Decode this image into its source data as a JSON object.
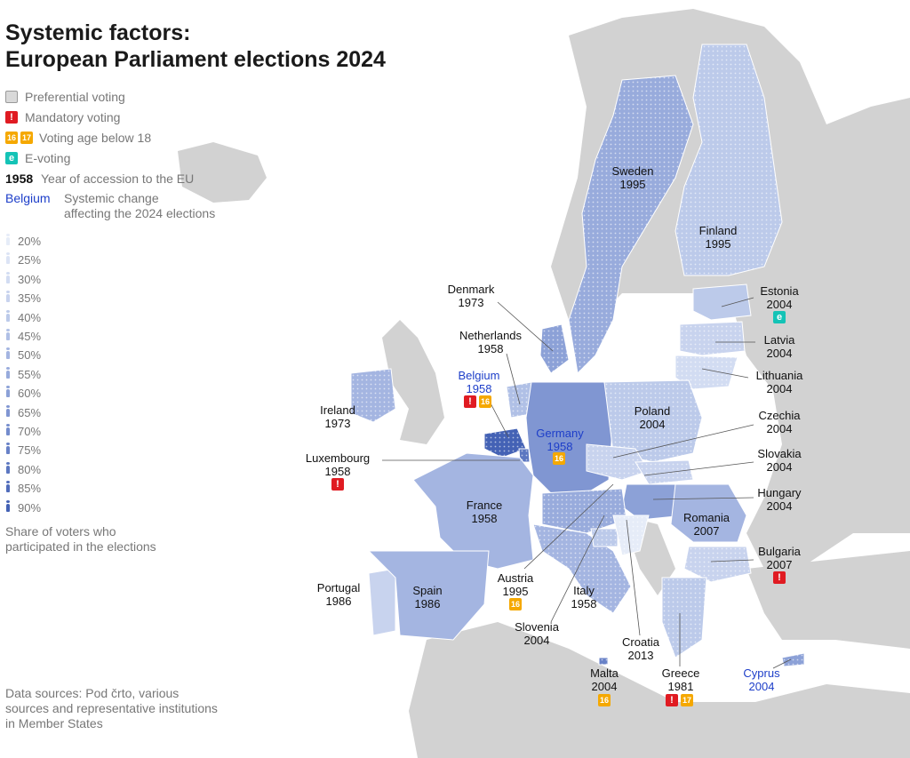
{
  "title": {
    "line1": "Systemic factors:",
    "line2": "European Parliament elections 2024"
  },
  "legend": {
    "preferential": "Preferential voting",
    "mandatory": "Mandatory voting",
    "age": "Voting age below 18",
    "age_badge_a": "16",
    "age_badge_b": "17",
    "evoting": "E-voting",
    "evoting_badge": "e",
    "mandatory_badge": "!",
    "year_example": "1958",
    "year_text": "Year of accession to the EU",
    "change_example": "Belgium",
    "change_text_1": "Systemic change",
    "change_text_2": "affecting the 2024 elections"
  },
  "scale": [
    "20%",
    "25%",
    "30%",
    "35%",
    "40%",
    "45%",
    "50%",
    "55%",
    "60%",
    "65%",
    "70%",
    "75%",
    "80%",
    "85%",
    "90%"
  ],
  "scale_colors": [
    "#e6ecf8",
    "#dce4f5",
    "#d2dcf2",
    "#c8d3ee",
    "#bccaea",
    "#b0c0e6",
    "#a4b5e1",
    "#98abdc",
    "#8ca1d7",
    "#8096d2",
    "#748ccd",
    "#6881c7",
    "#5c77c1",
    "#506cbb",
    "#4462b5"
  ],
  "share_note": "Share of voters who participated in the elections",
  "sources": "Data sources: Pod črto, various sources and representative institutions in Member States",
  "colors": {
    "land": "#d2d2d2",
    "sea": "#ffffff",
    "mandatory": "#e01b22",
    "age": "#f5a800",
    "evoting": "#14c3b6",
    "change": "#1d3ec9"
  },
  "countries": [
    {
      "name": "Sweden",
      "year": "1995",
      "turnout": 53.4,
      "pref": true
    },
    {
      "name": "Finland",
      "year": "1995",
      "turnout": 40.4,
      "pref": true
    },
    {
      "name": "Estonia",
      "year": "2004",
      "turnout": 37.6,
      "pref": false,
      "ev": true
    },
    {
      "name": "Latvia",
      "year": "2004",
      "turnout": 33.8,
      "pref": true
    },
    {
      "name": "Lithuania",
      "year": "2004",
      "turnout": 28.9,
      "pref": true
    },
    {
      "name": "Denmark",
      "year": "1973",
      "turnout": 58.3,
      "pref": true
    },
    {
      "name": "Netherlands",
      "year": "1958",
      "turnout": 46.2,
      "pref": true
    },
    {
      "name": "Belgium",
      "year": "1958",
      "turnout": 89.8,
      "pref": true,
      "mand": true,
      "age": [
        "16"
      ],
      "change": true
    },
    {
      "name": "Ireland",
      "year": "1973",
      "turnout": 50.3,
      "pref": true
    },
    {
      "name": "Germany",
      "year": "1958",
      "turnout": 64.7,
      "pref": false,
      "age": [
        "16"
      ],
      "change": true
    },
    {
      "name": "Poland",
      "year": "2004",
      "turnout": 40.7,
      "pref": true
    },
    {
      "name": "Czechia",
      "year": "2004",
      "turnout": 36.5,
      "pref": true
    },
    {
      "name": "Slovakia",
      "year": "2004",
      "turnout": 34.4,
      "pref": true
    },
    {
      "name": "Luxembourg",
      "year": "1958",
      "turnout": 82.3,
      "pref": true,
      "mand": true
    },
    {
      "name": "France",
      "year": "1958",
      "turnout": 51.5,
      "pref": false
    },
    {
      "name": "Hungary",
      "year": "2004",
      "turnout": 59.5,
      "pref": false
    },
    {
      "name": "Romania",
      "year": "2007",
      "turnout": 52.4,
      "pref": false
    },
    {
      "name": "Bulgaria",
      "year": "2007",
      "turnout": 33.8,
      "pref": true,
      "mand": true
    },
    {
      "name": "Portugal",
      "year": "1986",
      "turnout": 36.5,
      "pref": false
    },
    {
      "name": "Spain",
      "year": "1986",
      "turnout": 49.2,
      "pref": false
    },
    {
      "name": "Austria",
      "year": "1995",
      "turnout": 56.3,
      "pref": true,
      "age": [
        "16"
      ]
    },
    {
      "name": "Italy",
      "year": "1958",
      "turnout": 48.3,
      "pref": true
    },
    {
      "name": "Slovenia",
      "year": "2004",
      "turnout": 41.8,
      "pref": true
    },
    {
      "name": "Croatia",
      "year": "2013",
      "turnout": 21.3,
      "pref": true
    },
    {
      "name": "Malta",
      "year": "2004",
      "turnout": 72.9,
      "pref": true,
      "age": [
        "16"
      ]
    },
    {
      "name": "Greece",
      "year": "1981",
      "turnout": 41.4,
      "pref": true,
      "mand": true,
      "age": [
        "17"
      ]
    },
    {
      "name": "Cyprus",
      "year": "2004",
      "turnout": 58.9,
      "pref": true,
      "change": true
    }
  ]
}
